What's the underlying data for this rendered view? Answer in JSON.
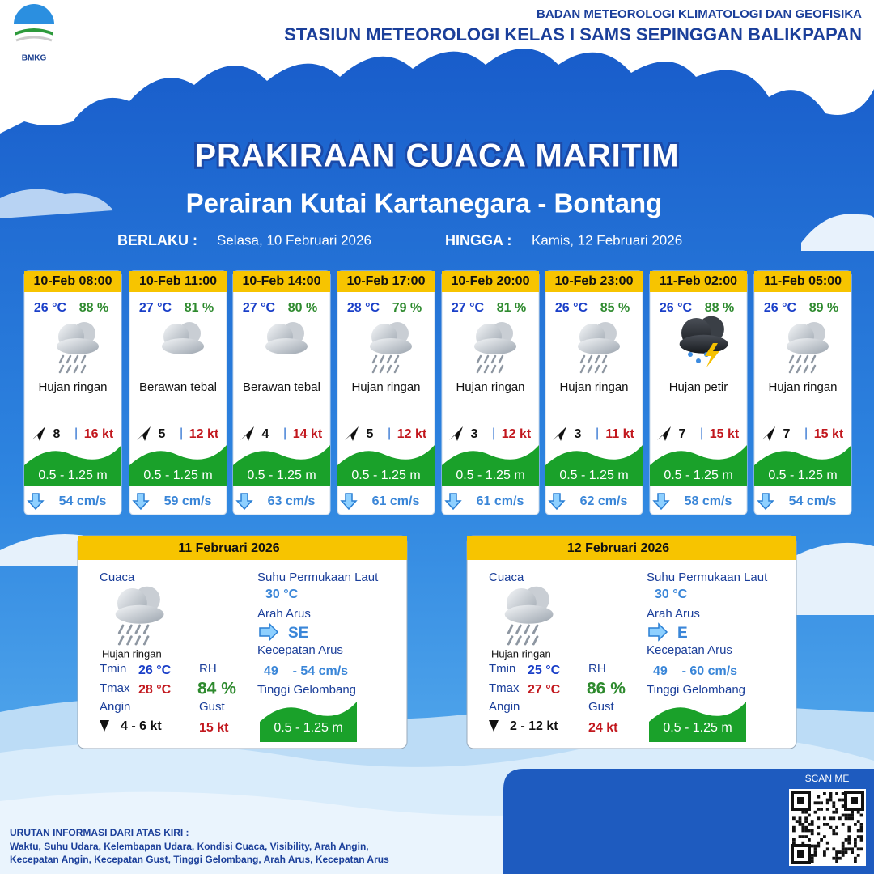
{
  "header": {
    "logo": "BMKG",
    "org": "BADAN METEOROLOGI KLIMATOLOGI DAN GEOFISIKA",
    "station": "STASIUN METEOROLOGI KELAS I SAMS SEPINGGAN BALIKPAPAN"
  },
  "title": "PRAKIRAAN CUACA MARITIM",
  "subtitle": "Perairan Kutai Kartanegara - Bontang",
  "validity": {
    "from_label": "BERLAKU :",
    "from": "Selasa, 10 Februari 2026",
    "to_label": "HINGGA :",
    "to": "Kamis, 12 Februari 2026"
  },
  "forecasts": [
    {
      "time": "10-Feb 08:00",
      "temp": "26 °C",
      "rh": "88 %",
      "weather": "Hujan ringan",
      "wind": "8",
      "gust": "16 kt",
      "wave": "0.5 - 1.25 m",
      "current": "54 cm/s"
    },
    {
      "time": "10-Feb 11:00",
      "temp": "27 °C",
      "rh": "81 %",
      "weather": "Berawan tebal",
      "wind": "5",
      "gust": "12 kt",
      "wave": "0.5 - 1.25 m",
      "current": "59 cm/s"
    },
    {
      "time": "10-Feb 14:00",
      "temp": "27 °C",
      "rh": "80 %",
      "weather": "Berawan tebal",
      "wind": "4",
      "gust": "14 kt",
      "wave": "0.5 - 1.25 m",
      "current": "63 cm/s"
    },
    {
      "time": "10-Feb 17:00",
      "temp": "28 °C",
      "rh": "79 %",
      "weather": "Hujan ringan",
      "wind": "5",
      "gust": "12 kt",
      "wave": "0.5 - 1.25 m",
      "current": "61 cm/s"
    },
    {
      "time": "10-Feb 20:00",
      "temp": "27 °C",
      "rh": "81 %",
      "weather": "Hujan ringan",
      "wind": "3",
      "gust": "12 kt",
      "wave": "0.5 - 1.25 m",
      "current": "61 cm/s"
    },
    {
      "time": "10-Feb 23:00",
      "temp": "26 °C",
      "rh": "85 %",
      "weather": "Hujan ringan",
      "wind": "3",
      "gust": "11 kt",
      "wave": "0.5 - 1.25 m",
      "current": "62 cm/s"
    },
    {
      "time": "11-Feb 02:00",
      "temp": "26 °C",
      "rh": "88 %",
      "weather": "Hujan petir",
      "wind": "7",
      "gust": "15 kt",
      "wave": "0.5 - 1.25 m",
      "current": "58 cm/s"
    },
    {
      "time": "11-Feb 05:00",
      "temp": "26 °C",
      "rh": "89 %",
      "weather": "Hujan ringan",
      "wind": "7",
      "gust": "15 kt",
      "wave": "0.5 - 1.25 m",
      "current": "54 cm/s"
    }
  ],
  "daily_labels": {
    "weather": "Cuaca",
    "tmin": "Tmin",
    "tmax": "Tmax",
    "wind": "Angin",
    "rh": "RH",
    "gust": "Gust",
    "sst": "Suhu Permukaan Laut",
    "current_dir": "Arah Arus",
    "current_speed": "Kecepatan Arus",
    "wave": "Tinggi Gelombang"
  },
  "daily": [
    {
      "date": "11 Februari 2026",
      "weather": "Hujan ringan",
      "tmin": "26 °C",
      "tmax": "28 °C",
      "wind": "4  - 6 kt",
      "rh": "84 %",
      "gust": "15 kt",
      "sst": "30 °C",
      "current_dir": "SE",
      "current_speed": "49    - 54 cm/s",
      "wave": "0.5 - 1.25 m"
    },
    {
      "date": "12 Februari 2026",
      "weather": "Hujan ringan",
      "tmin": "25 °C",
      "tmax": "27 °C",
      "wind": "2  - 12 kt",
      "rh": "86 %",
      "gust": "24 kt",
      "sst": "30 °C",
      "current_dir": "E",
      "current_speed": "49    - 60 cm/s",
      "wave": "0.5 - 1.25 m"
    }
  ],
  "footer": {
    "scan": "SCAN ME",
    "notes_title": "URUTAN INFORMASI DARI ATAS KIRI :",
    "notes": [
      "Waktu, Suhu Udara, Kelembapan Udara, Kondisi Cuaca, Visibility, Arah Angin,",
      "Kecepatan Angin, Kecepatan Gust, Tinggi Gelombang, Arah Arus, Kecepatan Arus"
    ]
  }
}
